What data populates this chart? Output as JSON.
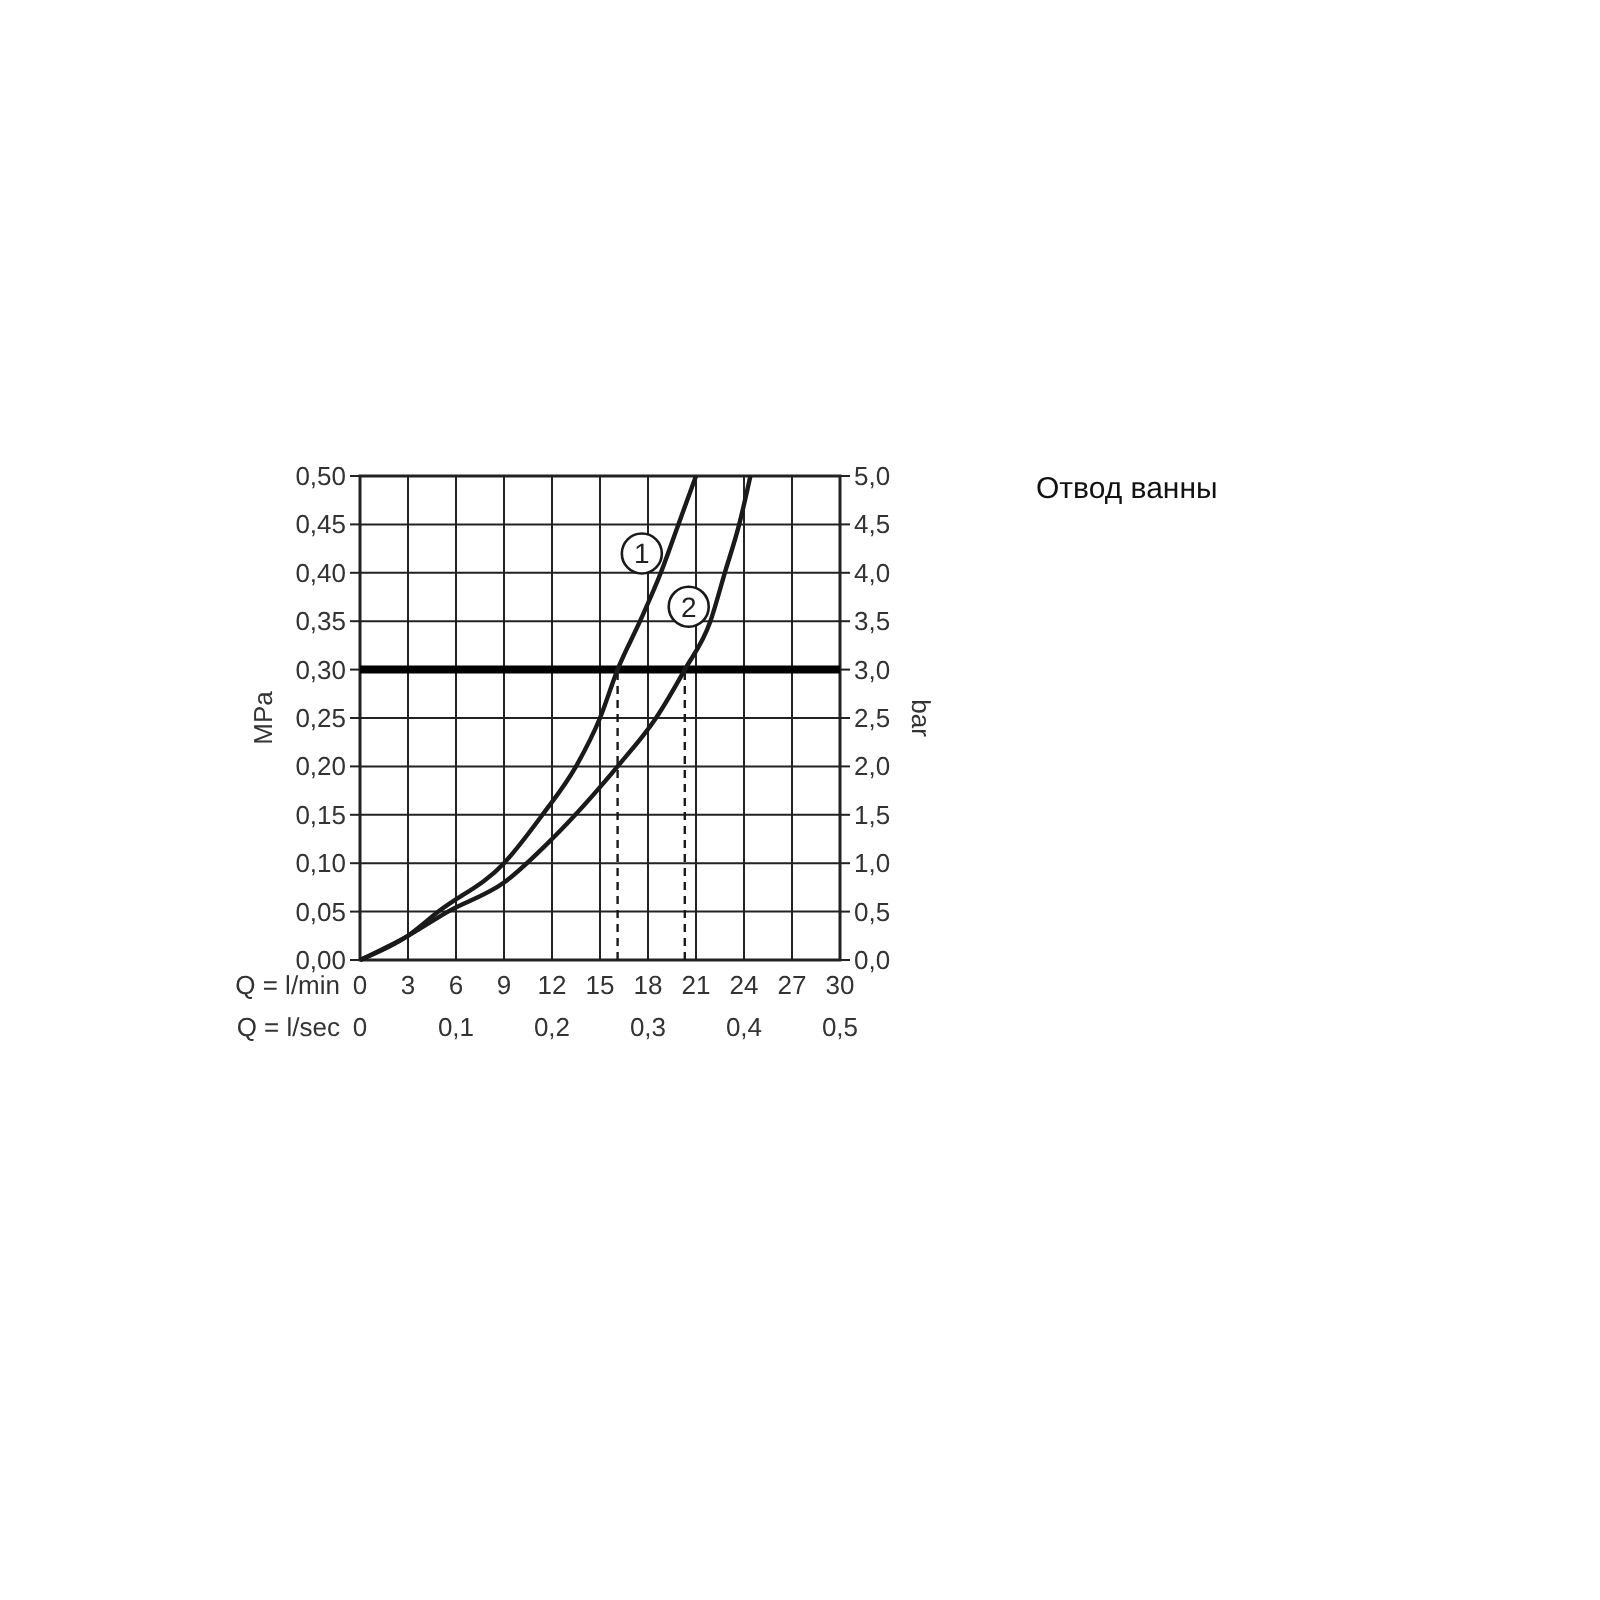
{
  "chart_data": {
    "type": "line",
    "title": "Отвод ванны",
    "xlabel": "Q = l/min",
    "x2label": "Q = l/sec",
    "ylabel": "MPa",
    "y2label": "bar",
    "xlim": [
      0,
      30
    ],
    "xticks": [
      0,
      3,
      6,
      9,
      12,
      15,
      18,
      21,
      24,
      27,
      30
    ],
    "x2lim": [
      0,
      0.5
    ],
    "x2ticks": [
      {
        "value": 0,
        "label": "0"
      },
      {
        "value": 0.1,
        "label": "0,1"
      },
      {
        "value": 0.2,
        "label": "0,2"
      },
      {
        "value": 0.3,
        "label": "0,3"
      },
      {
        "value": 0.4,
        "label": "0,4"
      },
      {
        "value": 0.5,
        "label": "0,5"
      }
    ],
    "ylim": [
      0,
      0.5
    ],
    "yticks": [
      {
        "value": 0,
        "label": "0,00"
      },
      {
        "value": 0.05,
        "label": "0,05"
      },
      {
        "value": 0.1,
        "label": "0,10"
      },
      {
        "value": 0.15,
        "label": "0,15"
      },
      {
        "value": 0.2,
        "label": "0,20"
      },
      {
        "value": 0.25,
        "label": "0,25"
      },
      {
        "value": 0.3,
        "label": "0,30"
      },
      {
        "value": 0.35,
        "label": "0,35"
      },
      {
        "value": 0.4,
        "label": "0,40"
      },
      {
        "value": 0.45,
        "label": "0,45"
      },
      {
        "value": 0.5,
        "label": "0,50"
      }
    ],
    "y2lim": [
      0,
      5
    ],
    "y2ticks": [
      {
        "value": 0,
        "label": "0,0"
      },
      {
        "value": 0.5,
        "label": "0,5"
      },
      {
        "value": 1,
        "label": "1,0"
      },
      {
        "value": 1.5,
        "label": "1,5"
      },
      {
        "value": 2,
        "label": "2,0"
      },
      {
        "value": 2.5,
        "label": "2,5"
      },
      {
        "value": 3,
        "label": "3,0"
      },
      {
        "value": 3.5,
        "label": "3,5"
      },
      {
        "value": 4,
        "label": "4,0"
      },
      {
        "value": 4.5,
        "label": "4,5"
      },
      {
        "value": 5,
        "label": "5,0"
      }
    ],
    "grid": true,
    "marker": "none",
    "line_style": "solid",
    "series": [
      {
        "name": "1",
        "color": "#1a1a1a",
        "x": [
          0,
          3,
          4.9,
          9,
          11.4,
          13.5,
          15,
          16.1,
          17.5,
          18.8,
          19.9,
          21
        ],
        "values": [
          0,
          0.025,
          0.05,
          0.1,
          0.15,
          0.2,
          0.25,
          0.3,
          0.35,
          0.4,
          0.45,
          0.5
        ]
      },
      {
        "name": "2",
        "color": "#1a1a1a",
        "x": [
          0,
          3,
          5.5,
          9,
          12,
          16.1,
          18.5,
          20.3,
          21.9,
          22.8,
          23.7,
          24.4
        ],
        "values": [
          0,
          0.025,
          0.05,
          0.08,
          0.125,
          0.2,
          0.25,
          0.3,
          0.35,
          0.4,
          0.45,
          0.5
        ]
      }
    ],
    "ref_lines": [
      {
        "axis": "y",
        "value": 0.3,
        "color": "#000000",
        "line_style": "solid"
      },
      {
        "axis": "x",
        "value": 16.1,
        "color": "#1a1a1a",
        "line_style": "dashed"
      },
      {
        "axis": "x",
        "value": 20.3,
        "color": "#1a1a1a",
        "line_style": "dashed"
      }
    ]
  }
}
